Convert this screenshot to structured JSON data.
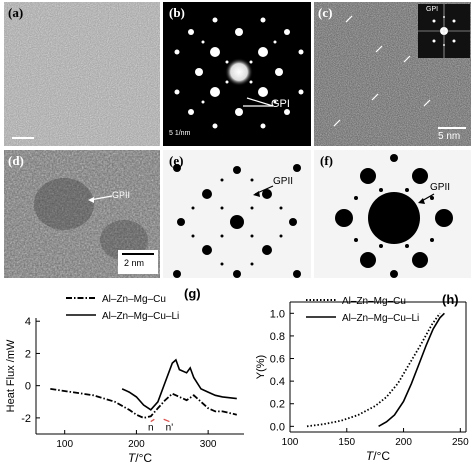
{
  "panels": {
    "a": {
      "label": "(a)"
    },
    "b": {
      "label": "(b)",
      "annotation": "GPI",
      "scale": "5 1/nm"
    },
    "c": {
      "label": "(c)",
      "inset_annotation": "GPI",
      "scale": "5 nm"
    },
    "d": {
      "label": "(d)",
      "annotation": "GPII",
      "scale": "2 nm"
    },
    "e": {
      "label": "(e)",
      "annotation": "GPII"
    },
    "f": {
      "label": "(f)",
      "annotation": "GPII"
    }
  },
  "chart_data": [
    {
      "panel_label": "(g)",
      "type": "line",
      "xlabel": "T/°C",
      "ylabel": "Heat Flux /mW",
      "xlim": [
        60,
        350
      ],
      "ylim": [
        -3,
        4.2
      ],
      "xticks": [
        100,
        200,
        300
      ],
      "yticks": [
        -2,
        0,
        2,
        4
      ],
      "legend_position": "top-left",
      "annotations": [
        "n",
        "n'"
      ],
      "series": [
        {
          "name": "Al–Zn–Mg–Cu",
          "style": "dash-dot",
          "x": [
            80,
            110,
            140,
            170,
            190,
            200,
            210,
            220,
            230,
            240,
            250,
            260,
            270,
            280,
            290,
            300,
            310,
            320,
            340
          ],
          "y": [
            -0.2,
            -0.4,
            -0.6,
            -1.0,
            -1.5,
            -1.8,
            -2.0,
            -1.9,
            -1.4,
            -0.9,
            -0.5,
            -0.7,
            -0.9,
            -0.6,
            -1.0,
            -1.4,
            -1.6,
            -1.6,
            -1.8
          ]
        },
        {
          "name": "Al–Zn–Mg–Cu–Li",
          "style": "solid",
          "x": [
            180,
            190,
            200,
            210,
            220,
            230,
            240,
            250,
            255,
            260,
            270,
            275,
            280,
            290,
            300,
            310,
            320,
            340
          ],
          "y": [
            -0.2,
            -0.4,
            -0.7,
            -1.2,
            -1.5,
            -1.0,
            0.2,
            1.4,
            1.6,
            1.0,
            0.8,
            1.1,
            0.5,
            -0.2,
            -0.4,
            -0.6,
            -0.7,
            -0.8
          ]
        }
      ]
    },
    {
      "panel_label": "(h)",
      "type": "line",
      "xlabel": "T/°C",
      "ylabel": "Y(%)",
      "xlim": [
        100,
        255
      ],
      "ylim": [
        -0.05,
        1.1
      ],
      "xticks": [
        100,
        150,
        200,
        250
      ],
      "yticks": [
        0.0,
        0.2,
        0.4,
        0.6,
        0.8,
        1.0
      ],
      "legend_position": "top-left",
      "series": [
        {
          "name": "Al–Zn–Mg–Cu",
          "style": "dotted",
          "x": [
            115,
            130,
            145,
            160,
            175,
            185,
            195,
            205,
            215,
            225,
            232
          ],
          "y": [
            0.0,
            0.02,
            0.05,
            0.1,
            0.18,
            0.26,
            0.38,
            0.55,
            0.72,
            0.9,
            1.0
          ]
        },
        {
          "name": "Al–Zn–Mg–Cu–Li",
          "style": "solid",
          "x": [
            178,
            185,
            192,
            200,
            207,
            214,
            220,
            226,
            232,
            236
          ],
          "y": [
            0.0,
            0.04,
            0.1,
            0.22,
            0.38,
            0.56,
            0.72,
            0.86,
            0.96,
            1.0
          ]
        }
      ]
    }
  ]
}
